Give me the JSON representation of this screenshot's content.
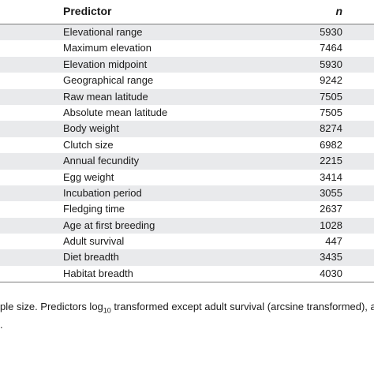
{
  "table": {
    "header": {
      "predictor_label": "Predictor",
      "n_label": "n"
    },
    "rows": [
      {
        "predictor": "Elevational range",
        "n": "5930"
      },
      {
        "predictor": "Maximum elevation",
        "n": "7464"
      },
      {
        "predictor": "Elevation midpoint",
        "n": "5930"
      },
      {
        "predictor": "Geographical range",
        "n": "9242"
      },
      {
        "predictor": "Raw mean latitude",
        "n": "7505"
      },
      {
        "predictor": "Absolute mean latitude",
        "n": "7505"
      },
      {
        "predictor": "Body weight",
        "n": "8274"
      },
      {
        "predictor": "Clutch size",
        "n": "6982"
      },
      {
        "predictor": "Annual fecundity",
        "n": "2215"
      },
      {
        "predictor": "Egg weight",
        "n": "3414"
      },
      {
        "predictor": "Incubation period",
        "n": "3055"
      },
      {
        "predictor": "Fledging time",
        "n": "2637"
      },
      {
        "predictor": "Age at first breeding",
        "n": "1028"
      },
      {
        "predictor": "Adult survival",
        "n": "447"
      },
      {
        "predictor": "Diet breadth",
        "n": "3435"
      },
      {
        "predictor": "Habitat breadth",
        "n": "4030"
      }
    ]
  },
  "footnote": {
    "line1_before": "ple size. Predictors log",
    "line1_sub": "10",
    "line1_after": " transformed except adult survival (arcsine transformed), a",
    "line2": "."
  },
  "colors": {
    "shaded_row": "#e9eaec",
    "rule": "#7a7a7a"
  }
}
